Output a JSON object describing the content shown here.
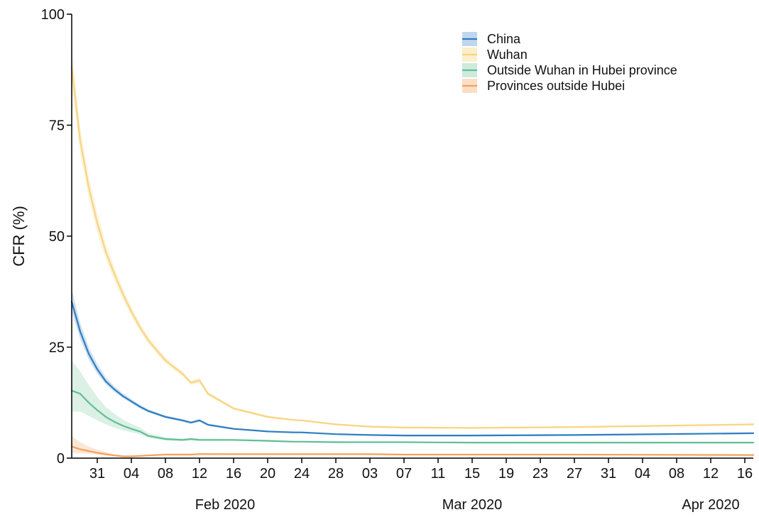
{
  "chart_data": {
    "type": "line",
    "title": "",
    "xlabel": "",
    "ylabel": "CFR (%)",
    "ylim": [
      0,
      100
    ],
    "y_ticks": [
      "0",
      "25",
      "50",
      "75",
      "100"
    ],
    "x_date_range": [
      "2020-01-28",
      "2020-04-17"
    ],
    "x_tick_labels": [
      "31",
      "04",
      "08",
      "12",
      "16",
      "20",
      "24",
      "28",
      "03",
      "07",
      "11",
      "15",
      "19",
      "23",
      "27",
      "31",
      "04",
      "08",
      "12",
      "16"
    ],
    "x_tick_dates": [
      "2020-01-31",
      "2020-02-04",
      "2020-02-08",
      "2020-02-12",
      "2020-02-16",
      "2020-02-20",
      "2020-02-24",
      "2020-02-28",
      "2020-03-03",
      "2020-03-07",
      "2020-03-11",
      "2020-03-15",
      "2020-03-19",
      "2020-03-23",
      "2020-03-27",
      "2020-03-31",
      "2020-04-04",
      "2020-04-08",
      "2020-04-12",
      "2020-04-16"
    ],
    "month_labels": [
      {
        "label": "Feb 2020",
        "date": "2020-02-15"
      },
      {
        "label": "Mar 2020",
        "date": "2020-03-15"
      },
      {
        "label": "Apr 2020",
        "date": "2020-04-12"
      }
    ],
    "grid": false,
    "legend_position": "top-right",
    "x": [
      "2020-01-28",
      "2020-01-29",
      "2020-01-30",
      "2020-01-31",
      "2020-02-01",
      "2020-02-02",
      "2020-02-03",
      "2020-02-04",
      "2020-02-05",
      "2020-02-06",
      "2020-02-08",
      "2020-02-10",
      "2020-02-11",
      "2020-02-12",
      "2020-02-13",
      "2020-02-16",
      "2020-02-20",
      "2020-02-23",
      "2020-02-24",
      "2020-02-28",
      "2020-03-03",
      "2020-03-07",
      "2020-03-15",
      "2020-03-27",
      "2020-04-17"
    ],
    "series": [
      {
        "name": "China",
        "color": "#2e7ec1",
        "band_color": "#a9c9e6",
        "values": [
          35.2,
          28.5,
          23.5,
          20.0,
          17.3,
          15.5,
          14.0,
          12.8,
          11.6,
          10.6,
          9.3,
          8.5,
          8.0,
          8.5,
          7.5,
          6.6,
          6.0,
          5.8,
          5.8,
          5.4,
          5.2,
          5.1,
          5.1,
          5.2,
          5.6
        ],
        "lower": [
          33.0,
          26.8,
          22.2,
          19.0,
          16.6,
          14.9,
          13.5,
          12.4,
          11.2,
          10.3,
          9.0,
          8.2,
          7.8,
          8.2,
          7.3,
          6.4,
          5.9,
          5.7,
          5.6,
          5.3,
          5.1,
          5.0,
          5.0,
          5.1,
          5.5
        ],
        "upper": [
          38.0,
          30.5,
          25.0,
          21.2,
          18.2,
          16.2,
          14.6,
          13.3,
          12.0,
          11.0,
          9.6,
          8.8,
          8.3,
          8.8,
          7.8,
          6.8,
          6.2,
          6.0,
          5.9,
          5.6,
          5.4,
          5.3,
          5.3,
          5.4,
          5.8
        ]
      },
      {
        "name": "Wuhan",
        "color": "#f7d583",
        "band_color": "#fbe9bb",
        "values": [
          88.0,
          71.5,
          61.0,
          53.0,
          46.5,
          41.5,
          37.0,
          33.0,
          29.5,
          26.5,
          22.0,
          19.0,
          17.0,
          17.5,
          14.5,
          11.2,
          9.3,
          8.6,
          8.5,
          7.6,
          7.1,
          6.9,
          6.8,
          7.0,
          7.6
        ],
        "lower": [
          84.0,
          68.5,
          58.5,
          50.8,
          44.8,
          40.0,
          35.7,
          31.9,
          28.6,
          25.7,
          21.3,
          18.4,
          16.5,
          16.9,
          14.0,
          10.9,
          9.0,
          8.4,
          8.3,
          7.4,
          6.9,
          6.7,
          6.6,
          6.8,
          7.4
        ],
        "upper": [
          92.0,
          74.5,
          63.5,
          55.2,
          48.3,
          43.0,
          38.3,
          34.1,
          30.4,
          27.3,
          22.7,
          19.6,
          17.5,
          18.1,
          15.0,
          11.5,
          9.6,
          8.8,
          8.7,
          7.8,
          7.3,
          7.1,
          7.0,
          7.2,
          7.8
        ]
      },
      {
        "name": "Outside Wuhan in Hubei province",
        "color": "#5fbf97",
        "band_color": "#bfe3d2",
        "values": [
          15.2,
          14.5,
          12.5,
          10.8,
          9.3,
          8.2,
          7.3,
          6.6,
          6.0,
          5.0,
          4.3,
          4.1,
          4.3,
          4.1,
          4.1,
          4.1,
          3.9,
          3.7,
          3.7,
          3.6,
          3.6,
          3.6,
          3.5,
          3.5,
          3.5
        ],
        "lower": [
          10.5,
          10.5,
          9.5,
          8.5,
          7.6,
          6.9,
          6.3,
          5.8,
          5.4,
          4.6,
          4.0,
          3.8,
          4.0,
          3.9,
          3.9,
          3.9,
          3.7,
          3.6,
          3.6,
          3.5,
          3.5,
          3.5,
          3.4,
          3.4,
          3.4
        ],
        "upper": [
          22.0,
          19.5,
          16.5,
          13.8,
          11.5,
          10.0,
          8.7,
          7.7,
          6.9,
          5.6,
          4.7,
          4.4,
          4.6,
          4.4,
          4.4,
          4.3,
          4.1,
          3.9,
          3.9,
          3.8,
          3.7,
          3.7,
          3.6,
          3.6,
          3.6
        ]
      },
      {
        "name": "Provinces outside Hubei",
        "color": "#f4a25b",
        "band_color": "#f8d3b3",
        "values": [
          2.6,
          2.0,
          1.6,
          1.2,
          0.9,
          0.6,
          0.4,
          0.4,
          0.5,
          0.6,
          0.8,
          0.8,
          0.8,
          0.9,
          0.9,
          0.9,
          0.9,
          0.9,
          0.9,
          0.9,
          0.9,
          0.8,
          0.8,
          0.8,
          0.7
        ],
        "lower": [
          1.2,
          1.1,
          1.0,
          0.8,
          0.6,
          0.4,
          0.3,
          0.3,
          0.4,
          0.5,
          0.7,
          0.7,
          0.7,
          0.8,
          0.8,
          0.8,
          0.8,
          0.8,
          0.8,
          0.8,
          0.8,
          0.7,
          0.7,
          0.7,
          0.6
        ],
        "upper": [
          5.0,
          3.6,
          2.6,
          1.9,
          1.4,
          0.9,
          0.6,
          0.6,
          0.7,
          0.8,
          1.0,
          1.0,
          1.0,
          1.1,
          1.1,
          1.0,
          1.0,
          1.0,
          1.0,
          1.0,
          1.0,
          0.9,
          0.9,
          0.9,
          0.8
        ]
      }
    ]
  }
}
